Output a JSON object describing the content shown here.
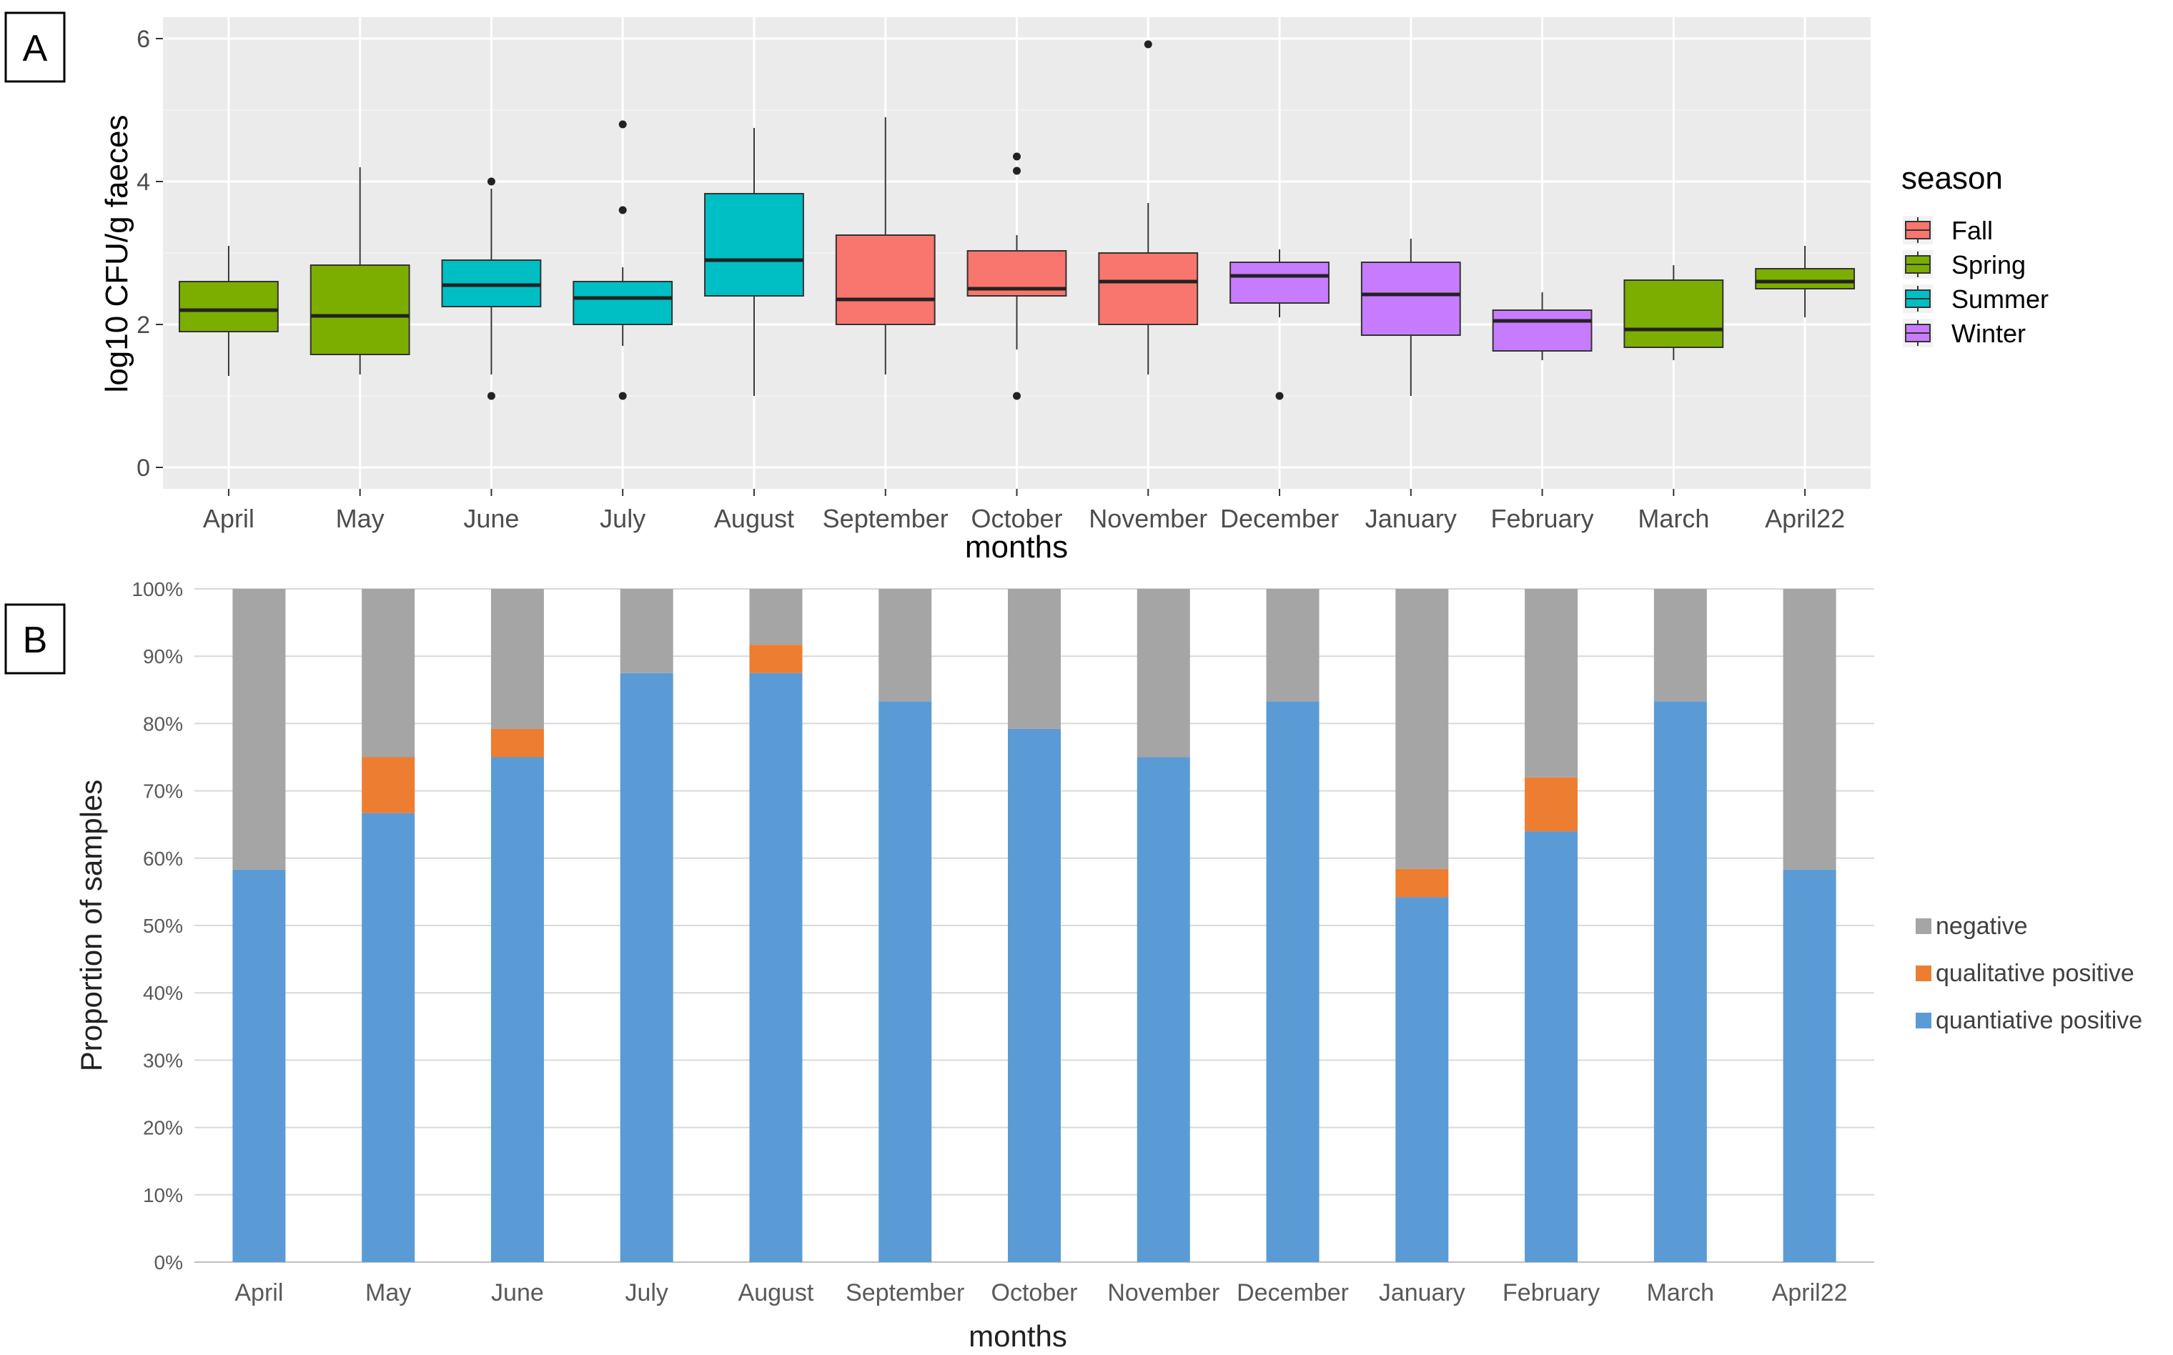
{
  "panels": {
    "a_label": "A",
    "b_label": "B"
  },
  "chart_data": [
    {
      "type": "boxplot",
      "panel": "A",
      "xlabel": "months",
      "ylabel": "log10 CFU/g faeces",
      "ylim": [
        -0.3,
        6.3
      ],
      "yticks": [
        0,
        2,
        4,
        6
      ],
      "grid": true,
      "legend": {
        "title": "season",
        "position": "right",
        "entries": [
          {
            "name": "Fall",
            "color": "#F8766D"
          },
          {
            "name": "Spring",
            "color": "#7CAE00"
          },
          {
            "name": "Summer",
            "color": "#00BFC4"
          },
          {
            "name": "Winter",
            "color": "#C77CFF"
          }
        ]
      },
      "boxes": [
        {
          "month": "April",
          "season": "Spring",
          "min": 1.28,
          "q1": 1.9,
          "median": 2.2,
          "q3": 2.6,
          "max": 3.1,
          "outliers": []
        },
        {
          "month": "May",
          "season": "Spring",
          "min": 1.3,
          "q1": 1.58,
          "median": 2.12,
          "q3": 2.83,
          "max": 4.2,
          "outliers": []
        },
        {
          "month": "June",
          "season": "Summer",
          "min": 1.3,
          "q1": 2.25,
          "median": 2.55,
          "q3": 2.9,
          "max": 3.9,
          "outliers": [
            1.0,
            4.0
          ]
        },
        {
          "month": "July",
          "season": "Summer",
          "min": 1.7,
          "q1": 2.0,
          "median": 2.37,
          "q3": 2.6,
          "max": 2.8,
          "outliers": [
            1.0,
            3.6,
            4.8
          ]
        },
        {
          "month": "August",
          "season": "Summer",
          "min": 1.0,
          "q1": 2.4,
          "median": 2.9,
          "q3": 3.83,
          "max": 4.75,
          "outliers": []
        },
        {
          "month": "September",
          "season": "Fall",
          "min": 1.3,
          "q1": 2.0,
          "median": 2.35,
          "q3": 3.25,
          "max": 4.9,
          "outliers": []
        },
        {
          "month": "October",
          "season": "Fall",
          "min": 1.65,
          "q1": 2.4,
          "median": 2.5,
          "q3": 3.03,
          "max": 3.25,
          "outliers": [
            1.0,
            4.15,
            4.35
          ]
        },
        {
          "month": "November",
          "season": "Fall",
          "min": 1.3,
          "q1": 2.0,
          "median": 2.6,
          "q3": 3.0,
          "max": 3.7,
          "outliers": [
            5.92
          ]
        },
        {
          "month": "December",
          "season": "Winter",
          "min": 2.1,
          "q1": 2.3,
          "median": 2.68,
          "q3": 2.87,
          "max": 3.05,
          "outliers": [
            1.0
          ]
        },
        {
          "month": "January",
          "season": "Winter",
          "min": 1.0,
          "q1": 1.85,
          "median": 2.42,
          "q3": 2.87,
          "max": 3.2,
          "outliers": []
        },
        {
          "month": "February",
          "season": "Winter",
          "min": 1.5,
          "q1": 1.63,
          "median": 2.05,
          "q3": 2.2,
          "max": 2.45,
          "outliers": []
        },
        {
          "month": "March",
          "season": "Spring",
          "min": 1.5,
          "q1": 1.68,
          "median": 1.93,
          "q3": 2.62,
          "max": 2.83,
          "outliers": []
        },
        {
          "month": "April22",
          "season": "Spring",
          "min": 2.1,
          "q1": 2.5,
          "median": 2.6,
          "q3": 2.78,
          "max": 3.1,
          "outliers": []
        }
      ]
    },
    {
      "type": "stacked_bar",
      "panel": "B",
      "xlabel": "months",
      "ylabel": "Proportion of samples",
      "ylim": [
        0,
        100
      ],
      "yticks": [
        "0%",
        "10%",
        "20%",
        "30%",
        "40%",
        "50%",
        "60%",
        "70%",
        "80%",
        "90%",
        "100%"
      ],
      "categories": [
        "April",
        "May",
        "June",
        "July",
        "August",
        "September",
        "October",
        "November",
        "December",
        "January",
        "February",
        "March",
        "April22"
      ],
      "series": [
        {
          "name": "quantiative positive",
          "color": "#5B9BD5",
          "values": [
            58.3,
            66.7,
            75.0,
            87.5,
            87.5,
            83.3,
            79.2,
            75.0,
            83.3,
            54.2,
            64.0,
            83.3,
            58.3
          ]
        },
        {
          "name": "qualitative positive",
          "color": "#ED7D31",
          "values": [
            0,
            8.3,
            4.2,
            0,
            4.2,
            0,
            0,
            0,
            0,
            4.2,
            8.0,
            0,
            0
          ]
        },
        {
          "name": "negative",
          "color": "#A5A5A5",
          "values": [
            41.7,
            25.0,
            20.8,
            12.5,
            8.3,
            16.7,
            20.8,
            25.0,
            16.7,
            41.6,
            28.0,
            16.7,
            41.7
          ]
        }
      ],
      "legend": {
        "position": "right",
        "order": [
          "negative",
          "qualitative positive",
          "quantiative positive"
        ]
      }
    }
  ]
}
